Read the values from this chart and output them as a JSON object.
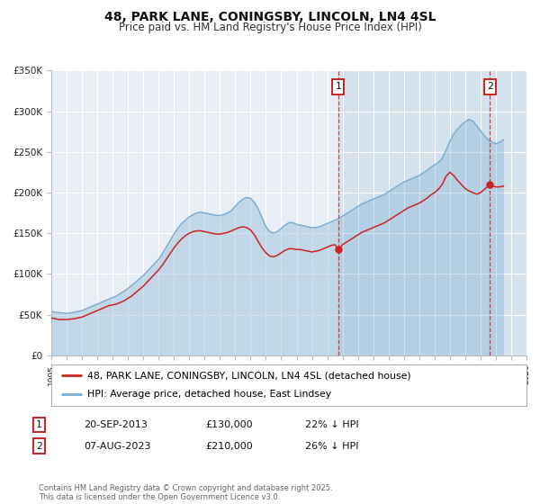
{
  "title": "48, PARK LANE, CONINGSBY, LINCOLN, LN4 4SL",
  "subtitle": "Price paid vs. HM Land Registry's House Price Index (HPI)",
  "title_fontsize": 10,
  "subtitle_fontsize": 8.5,
  "background_color": "#ffffff",
  "plot_bg_color": "#e8eef5",
  "grid_color": "#ffffff",
  "hpi_color": "#7aadcf",
  "price_color": "#cc2222",
  "ylim": [
    0,
    350000
  ],
  "yticks": [
    0,
    50000,
    100000,
    150000,
    200000,
    250000,
    300000,
    350000
  ],
  "ytick_labels": [
    "£0",
    "£50K",
    "£100K",
    "£150K",
    "£200K",
    "£250K",
    "£300K",
    "£350K"
  ],
  "xlim_start": 1995.0,
  "xlim_end": 2026.0,
  "xticks": [
    1995,
    1996,
    1997,
    1998,
    1999,
    2000,
    2001,
    2002,
    2003,
    2004,
    2005,
    2006,
    2007,
    2008,
    2009,
    2010,
    2011,
    2012,
    2013,
    2014,
    2015,
    2016,
    2017,
    2018,
    2019,
    2020,
    2021,
    2022,
    2023,
    2024,
    2025,
    2026
  ],
  "transaction1_date": 2013.72,
  "transaction1_price": 130000,
  "transaction2_date": 2023.6,
  "transaction2_price": 210000,
  "legend_line1": "48, PARK LANE, CONINGSBY, LINCOLN, LN4 4SL (detached house)",
  "legend_line2": "HPI: Average price, detached house, East Lindsey",
  "table_row1": [
    "1",
    "20-SEP-2013",
    "£130,000",
    "22% ↓ HPI"
  ],
  "table_row2": [
    "2",
    "07-AUG-2023",
    "£210,000",
    "26% ↓ HPI"
  ],
  "footer": "Contains HM Land Registry data © Crown copyright and database right 2025.\nThis data is licensed under the Open Government Licence v3.0.",
  "hpi_x": [
    1995.0,
    1995.25,
    1995.5,
    1995.75,
    1996.0,
    1996.25,
    1996.5,
    1996.75,
    1997.0,
    1997.25,
    1997.5,
    1997.75,
    1998.0,
    1998.25,
    1998.5,
    1998.75,
    1999.0,
    1999.25,
    1999.5,
    1999.75,
    2000.0,
    2000.25,
    2000.5,
    2000.75,
    2001.0,
    2001.25,
    2001.5,
    2001.75,
    2002.0,
    2002.25,
    2002.5,
    2002.75,
    2003.0,
    2003.25,
    2003.5,
    2003.75,
    2004.0,
    2004.25,
    2004.5,
    2004.75,
    2005.0,
    2005.25,
    2005.5,
    2005.75,
    2006.0,
    2006.25,
    2006.5,
    2006.75,
    2007.0,
    2007.25,
    2007.5,
    2007.75,
    2008.0,
    2008.25,
    2008.5,
    2008.75,
    2009.0,
    2009.25,
    2009.5,
    2009.75,
    2010.0,
    2010.25,
    2010.5,
    2010.75,
    2011.0,
    2011.25,
    2011.5,
    2011.75,
    2012.0,
    2012.25,
    2012.5,
    2012.75,
    2013.0,
    2013.25,
    2013.5,
    2013.75,
    2014.0,
    2014.25,
    2014.5,
    2014.75,
    2015.0,
    2015.25,
    2015.5,
    2015.75,
    2016.0,
    2016.25,
    2016.5,
    2016.75,
    2017.0,
    2017.25,
    2017.5,
    2017.75,
    2018.0,
    2018.25,
    2018.5,
    2018.75,
    2019.0,
    2019.25,
    2019.5,
    2019.75,
    2020.0,
    2020.25,
    2020.5,
    2020.75,
    2021.0,
    2021.25,
    2021.5,
    2021.75,
    2022.0,
    2022.25,
    2022.5,
    2022.75,
    2023.0,
    2023.25,
    2023.5,
    2023.75,
    2024.0,
    2024.25,
    2024.5
  ],
  "hpi_y": [
    54000,
    53000,
    52500,
    52000,
    51500,
    52000,
    53000,
    54000,
    55000,
    57000,
    59000,
    61000,
    63000,
    65000,
    67000,
    69000,
    71000,
    73000,
    76000,
    79000,
    82000,
    86000,
    90000,
    94000,
    98000,
    103000,
    108000,
    113000,
    118000,
    125000,
    133000,
    141000,
    149000,
    156000,
    162000,
    166000,
    170000,
    173000,
    175000,
    176000,
    175000,
    174000,
    173000,
    172000,
    172000,
    173000,
    175000,
    178000,
    183000,
    188000,
    192000,
    194000,
    193000,
    188000,
    180000,
    169000,
    158000,
    152000,
    150000,
    152000,
    156000,
    160000,
    163000,
    163000,
    161000,
    160000,
    159000,
    158000,
    157000,
    157000,
    158000,
    160000,
    162000,
    164000,
    166000,
    168000,
    171000,
    174000,
    177000,
    180000,
    183000,
    186000,
    188000,
    190000,
    192000,
    194000,
    196000,
    198000,
    201000,
    204000,
    207000,
    210000,
    213000,
    215000,
    217000,
    219000,
    221000,
    224000,
    227000,
    231000,
    234000,
    237000,
    242000,
    252000,
    263000,
    272000,
    278000,
    283000,
    287000,
    290000,
    288000,
    282000,
    276000,
    270000,
    265000,
    262000,
    260000,
    262000,
    265000
  ],
  "price_y": [
    46000,
    45000,
    44000,
    44000,
    44000,
    44500,
    45000,
    46000,
    47000,
    49000,
    51000,
    53000,
    55000,
    57000,
    59000,
    61000,
    62000,
    63000,
    65000,
    67000,
    70000,
    73000,
    77000,
    81000,
    85000,
    90000,
    95000,
    100000,
    105000,
    111000,
    118000,
    125000,
    132000,
    138000,
    143000,
    147000,
    150000,
    152000,
    153000,
    153000,
    152000,
    151000,
    150000,
    149000,
    149000,
    150000,
    151000,
    153000,
    155000,
    157000,
    158000,
    157000,
    154000,
    148000,
    140000,
    132000,
    126000,
    122000,
    121000,
    123000,
    126000,
    129000,
    131000,
    131000,
    130000,
    130000,
    129000,
    128000,
    127000,
    128000,
    129000,
    131000,
    133000,
    135000,
    136000,
    130000,
    136000,
    139000,
    142000,
    145000,
    148000,
    151000,
    153000,
    155000,
    157000,
    159000,
    161000,
    163000,
    166000,
    169000,
    172000,
    175000,
    178000,
    181000,
    183000,
    185000,
    187000,
    190000,
    193000,
    197000,
    200000,
    204000,
    210000,
    220000,
    225000,
    221000,
    215000,
    210000,
    205000,
    202000,
    200000,
    198000,
    200000,
    204000,
    208000,
    208000,
    207000,
    207000,
    208000
  ]
}
